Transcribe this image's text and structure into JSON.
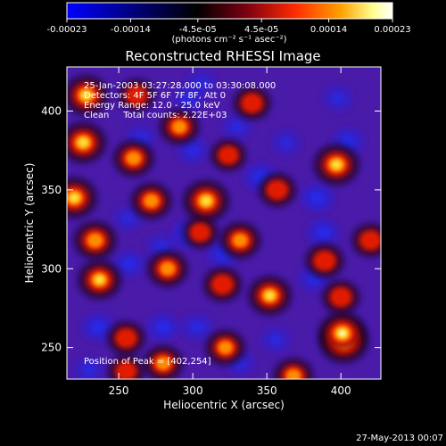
{
  "chart_data": {
    "type": "heatmap",
    "title": "Reconstructed RHESSI Image",
    "xlabel": "Heliocentric X (arcsec)",
    "ylabel": "Heliocentric Y (arcsec)",
    "xlim": [
      215,
      427
    ],
    "ylim": [
      230,
      428
    ],
    "x_ticks": [
      250,
      300,
      350,
      400
    ],
    "y_ticks": [
      250,
      300,
      350,
      400
    ],
    "colorbar": {
      "min": -0.00023,
      "max": 0.00023,
      "tick_labels": [
        "-0.00023",
        "-0.00014",
        "-4.5e-05",
        "4.5e-05",
        "0.00014",
        "0.00023"
      ],
      "unit_label": "(photons cm⁻² s⁻¹ asec⁻²)",
      "colors": [
        "#0000ff",
        "#000000",
        "#7a0012",
        "#ff2a00",
        "#ffa000",
        "#ffff90",
        "#ffffff"
      ]
    },
    "info_lines": [
      "25-Jan-2003 03:27:28.000 to 03:30:08.000",
      "Detectors: 4F 5F 6F 7F 8F, Att 0",
      "Energy Range: 12.0 - 25.0 keV",
      "Clean     Total counts: 2.22E+03"
    ],
    "peak_label": "Position of Peak = [402,254]",
    "peak_position": [
      402,
      254
    ],
    "background_color": "#4a1aa8",
    "sources": [
      {
        "x": 309,
        "y": 343,
        "strength": 0.88
      },
      {
        "x": 402,
        "y": 254,
        "strength": 1.0
      },
      {
        "x": 401,
        "y": 259,
        "strength": 0.95
      },
      {
        "x": 397,
        "y": 366,
        "strength": 0.85
      },
      {
        "x": 220,
        "y": 345,
        "strength": 0.85
      },
      {
        "x": 226,
        "y": 380,
        "strength": 0.85
      },
      {
        "x": 228,
        "y": 410,
        "strength": 0.8
      },
      {
        "x": 352,
        "y": 283,
        "strength": 0.75
      },
      {
        "x": 234,
        "y": 318,
        "strength": 0.7
      },
      {
        "x": 237,
        "y": 293,
        "strength": 0.75
      },
      {
        "x": 272,
        "y": 343,
        "strength": 0.6
      },
      {
        "x": 260,
        "y": 370,
        "strength": 0.6
      },
      {
        "x": 291,
        "y": 390,
        "strength": 0.55
      },
      {
        "x": 283,
        "y": 300,
        "strength": 0.6
      },
      {
        "x": 320,
        "y": 290,
        "strength": 0.5
      },
      {
        "x": 332,
        "y": 318,
        "strength": 0.6
      },
      {
        "x": 389,
        "y": 305,
        "strength": 0.5
      },
      {
        "x": 322,
        "y": 250,
        "strength": 0.55
      },
      {
        "x": 280,
        "y": 240,
        "strength": 0.55
      },
      {
        "x": 255,
        "y": 256,
        "strength": 0.45
      },
      {
        "x": 368,
        "y": 232,
        "strength": 0.55
      },
      {
        "x": 400,
        "y": 282,
        "strength": 0.45
      },
      {
        "x": 340,
        "y": 405,
        "strength": 0.45
      },
      {
        "x": 357,
        "y": 350,
        "strength": 0.45
      },
      {
        "x": 420,
        "y": 318,
        "strength": 0.45
      },
      {
        "x": 262,
        "y": 410,
        "strength": 0.4
      },
      {
        "x": 324,
        "y": 372,
        "strength": 0.35
      },
      {
        "x": 305,
        "y": 323,
        "strength": 0.35
      },
      {
        "x": 255,
        "y": 235,
        "strength": 0.4
      }
    ],
    "sinks": [
      {
        "x": 297,
        "y": 322,
        "strength": 0.8
      },
      {
        "x": 346,
        "y": 358,
        "strength": 0.8
      },
      {
        "x": 384,
        "y": 345,
        "strength": 0.8
      },
      {
        "x": 388,
        "y": 323,
        "strength": 0.75
      },
      {
        "x": 320,
        "y": 309,
        "strength": 0.7
      },
      {
        "x": 236,
        "y": 263,
        "strength": 0.75
      },
      {
        "x": 280,
        "y": 263,
        "strength": 0.75
      },
      {
        "x": 257,
        "y": 303,
        "strength": 0.7
      },
      {
        "x": 405,
        "y": 381,
        "strength": 0.7
      },
      {
        "x": 303,
        "y": 263,
        "strength": 0.65
      },
      {
        "x": 330,
        "y": 390,
        "strength": 0.6
      },
      {
        "x": 297,
        "y": 408,
        "strength": 0.6
      },
      {
        "x": 300,
        "y": 375,
        "strength": 0.65
      },
      {
        "x": 265,
        "y": 383,
        "strength": 0.6
      },
      {
        "x": 382,
        "y": 294,
        "strength": 0.7
      },
      {
        "x": 356,
        "y": 255,
        "strength": 0.6
      },
      {
        "x": 230,
        "y": 236,
        "strength": 0.6
      },
      {
        "x": 279,
        "y": 314,
        "strength": 0.6
      },
      {
        "x": 332,
        "y": 240,
        "strength": 0.55
      },
      {
        "x": 398,
        "y": 408,
        "strength": 0.6
      },
      {
        "x": 306,
        "y": 418,
        "strength": 0.55
      },
      {
        "x": 363,
        "y": 380,
        "strength": 0.55
      },
      {
        "x": 256,
        "y": 332,
        "strength": 0.55
      }
    ]
  },
  "footer": {
    "date_stamp": "27-May-2013 00:07"
  }
}
